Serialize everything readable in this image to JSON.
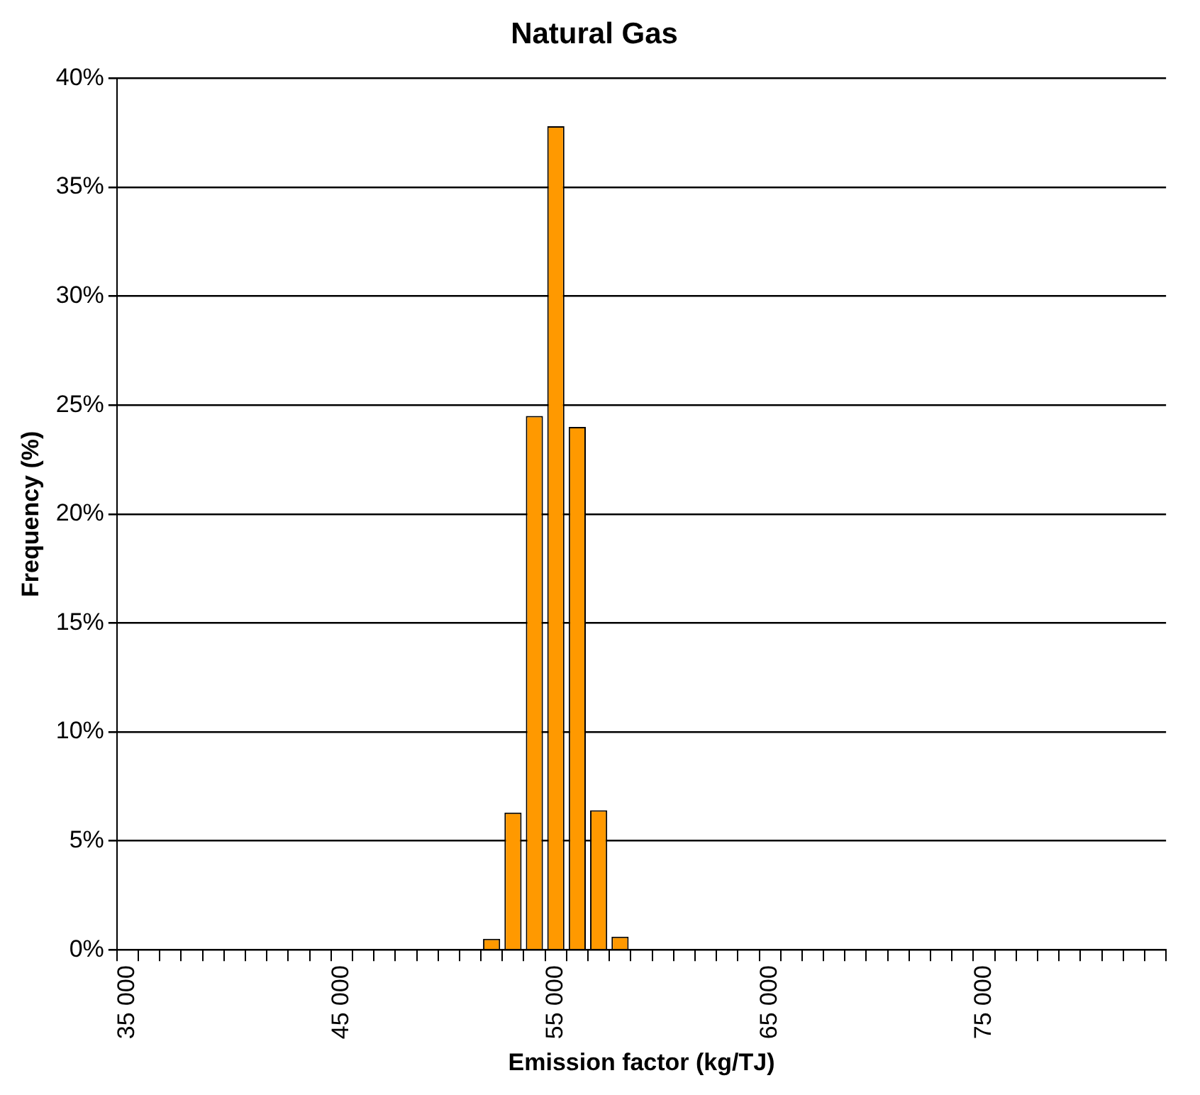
{
  "chart_data": {
    "type": "bar",
    "title": "Natural Gas",
    "xlabel": "Emission factor (kg/TJ)",
    "ylabel": "Frequency (%)",
    "categories": [
      "35 000",
      null,
      null,
      null,
      null,
      null,
      null,
      null,
      null,
      null,
      "45 000",
      null,
      null,
      null,
      null,
      null,
      null,
      null,
      null,
      null,
      "55 000",
      null,
      null,
      null,
      null,
      null,
      null,
      null,
      null,
      null,
      "65 000",
      null,
      null,
      null,
      null,
      null,
      null,
      null,
      null,
      null,
      "75 000",
      null,
      null,
      null,
      null,
      null,
      null,
      null,
      null
    ],
    "values": [
      0,
      0,
      0,
      0,
      0,
      0,
      0,
      0,
      0,
      0,
      0,
      0,
      0,
      0,
      0,
      0,
      0,
      0.5,
      6.3,
      24.5,
      37.8,
      24,
      6.4,
      0.6,
      0,
      0,
      0,
      0,
      0,
      0,
      0,
      0,
      0,
      0,
      0,
      0,
      0,
      0,
      0,
      0,
      0,
      0,
      0,
      0,
      0,
      0,
      0,
      0,
      0
    ],
    "color": "#ff9900",
    "ylim": [
      0,
      40
    ],
    "yticks": [
      {
        "value": 0,
        "label": "0%"
      },
      {
        "value": 5,
        "label": "5%"
      },
      {
        "value": 10,
        "label": "10%"
      },
      {
        "value": 15,
        "label": "15%"
      },
      {
        "value": 20,
        "label": "20%"
      },
      {
        "value": 25,
        "label": "25%"
      },
      {
        "value": 30,
        "label": "30%"
      },
      {
        "value": 35,
        "label": "35%"
      },
      {
        "value": 40,
        "label": "40%"
      }
    ],
    "grid": "y",
    "legend": false
  }
}
